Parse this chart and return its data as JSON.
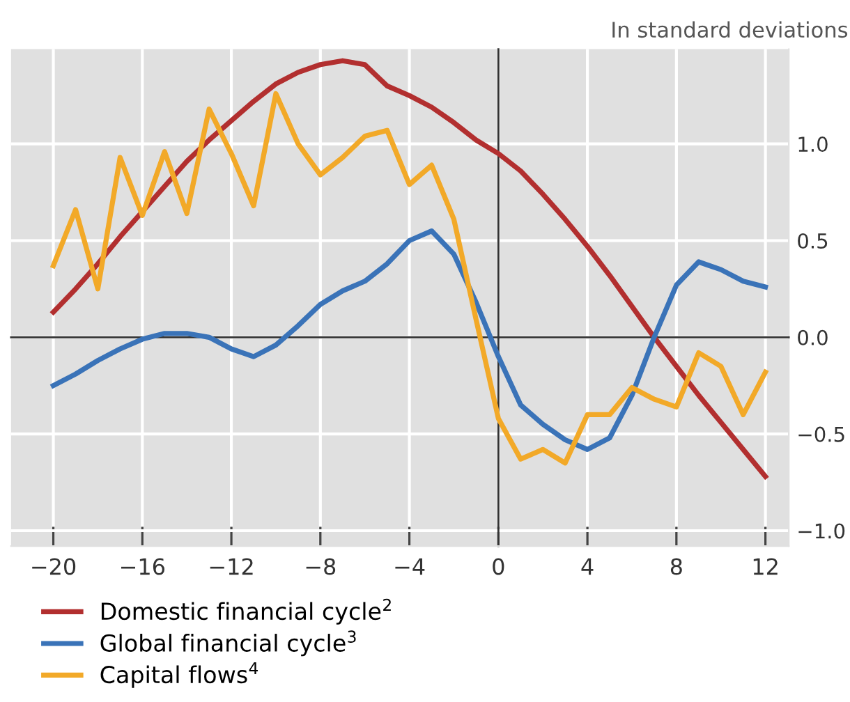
{
  "chart_data": {
    "type": "line",
    "annotations": [
      "In standard deviations"
    ],
    "x": [
      -20,
      -19,
      -18,
      -17,
      -16,
      -15,
      -14,
      -13,
      -12,
      -11,
      -10,
      -9,
      -8,
      -7,
      -6,
      -5,
      -4,
      -3,
      -2,
      -1,
      0,
      1,
      2,
      3,
      4,
      5,
      6,
      7,
      8,
      9,
      10,
      11,
      12
    ],
    "series": [
      {
        "name": "Domestic financial cycle$^{2}$",
        "color": "#b22f2f",
        "values": [
          0.13,
          0.25,
          0.38,
          0.52,
          0.65,
          0.78,
          0.91,
          1.02,
          1.12,
          1.22,
          1.31,
          1.37,
          1.41,
          1.43,
          1.41,
          1.3,
          1.25,
          1.19,
          1.11,
          1.02,
          0.95,
          0.86,
          0.74,
          0.61,
          0.47,
          0.32,
          0.16,
          0.0,
          -0.15,
          -0.3,
          -0.44,
          -0.58,
          -0.72
        ]
      },
      {
        "name": "Global financial cycle$^{3}$",
        "color": "#3a73b8",
        "values": [
          -0.25,
          -0.19,
          -0.12,
          -0.06,
          -0.01,
          0.02,
          0.02,
          0.0,
          -0.06,
          -0.1,
          -0.04,
          0.06,
          0.17,
          0.24,
          0.29,
          0.38,
          0.5,
          0.55,
          0.43,
          0.18,
          -0.1,
          -0.35,
          -0.45,
          -0.53,
          -0.58,
          -0.52,
          -0.3,
          0.0,
          0.27,
          0.39,
          0.35,
          0.29,
          0.26
        ]
      },
      {
        "name": "Capital flows$^{4}$",
        "color": "#f2a928",
        "values": [
          0.37,
          0.66,
          0.25,
          0.93,
          0.63,
          0.96,
          0.64,
          1.18,
          0.95,
          0.68,
          1.26,
          1.0,
          0.84,
          0.93,
          1.04,
          1.07,
          0.79,
          0.89,
          0.61,
          0.09,
          -0.42,
          -0.63,
          -0.58,
          -0.65,
          -0.4,
          -0.4,
          -0.26,
          -0.32,
          -0.36,
          -0.08,
          -0.15,
          -0.4,
          -0.18
        ]
      }
    ],
    "xlim": [
      -21.9,
      13.05
    ],
    "ylim": [
      -1.08,
      1.49
    ],
    "xticks": [
      {
        "value": -20,
        "label": "−20"
      },
      {
        "value": -16,
        "label": "−16"
      },
      {
        "value": -12,
        "label": "−12"
      },
      {
        "value": -8,
        "label": "−8"
      },
      {
        "value": -4,
        "label": "−4"
      },
      0,
      4,
      8,
      12
    ],
    "yticks": [
      {
        "value": -1.0,
        "label": "−1.0"
      },
      {
        "value": -0.5,
        "label": "−0.5"
      },
      {
        "value": 0.0,
        "label": "0.0"
      },
      {
        "value": 0.5,
        "label": "0.5"
      },
      {
        "value": 1.0,
        "label": "1.0"
      }
    ],
    "grid": true,
    "legend": "bottom left",
    "line_style": "solid",
    "marker": "none"
  }
}
